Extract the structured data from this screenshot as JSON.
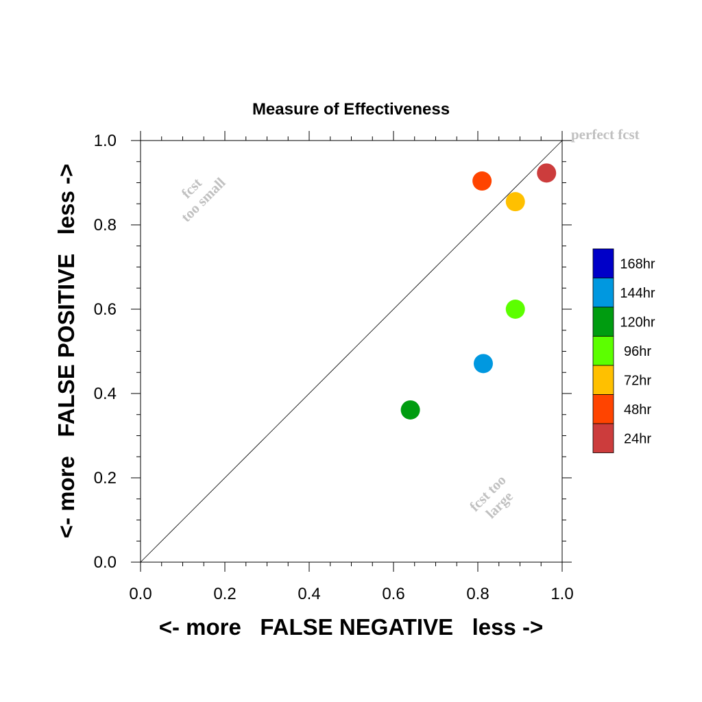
{
  "chart_data": {
    "type": "scatter",
    "title": "Measure of Effectiveness",
    "xlabel": "<- more   FALSE NEGATIVE   less ->",
    "ylabel": "<- more   FALSE POSITIVE   less ->",
    "xlim": [
      0.0,
      1.0
    ],
    "ylim": [
      0.0,
      1.0
    ],
    "xticks": [
      "0.0",
      "0.2",
      "0.4",
      "0.6",
      "0.8",
      "1.0"
    ],
    "yticks": [
      "0.0",
      "0.2",
      "0.4",
      "0.6",
      "0.8",
      "1.0"
    ],
    "annotations": {
      "perfect": "perfect fcst",
      "small_line1": "fcst",
      "small_line2": "too small",
      "large_line1": "fcst too",
      "large_line2": "large"
    },
    "series": [
      {
        "name": "24hr",
        "color": "#cc3c3c",
        "x": 0.963,
        "y": 0.923
      },
      {
        "name": "48hr",
        "color": "#ff4400",
        "x": 0.81,
        "y": 0.904
      },
      {
        "name": "72hr",
        "color": "#ffc000",
        "x": 0.889,
        "y": 0.855
      },
      {
        "name": "96hr",
        "color": "#5cff00",
        "x": 0.889,
        "y": 0.6
      },
      {
        "name": "120hr",
        "color": "#009c10",
        "x": 0.64,
        "y": 0.361
      },
      {
        "name": "144hr",
        "color": "#0098e0",
        "x": 0.813,
        "y": 0.471
      }
    ],
    "legend": {
      "position": "right",
      "entries": [
        {
          "label": "168hr",
          "color": "#0000c8"
        },
        {
          "label": "144hr",
          "color": "#0098e0"
        },
        {
          "label": "120hr",
          "color": "#009c10"
        },
        {
          "label": "96hr",
          "color": "#5cff00"
        },
        {
          "label": "72hr",
          "color": "#ffc000"
        },
        {
          "label": "48hr",
          "color": "#ff4400"
        },
        {
          "label": "24hr",
          "color": "#cc3c3c"
        }
      ]
    },
    "grid": false
  }
}
